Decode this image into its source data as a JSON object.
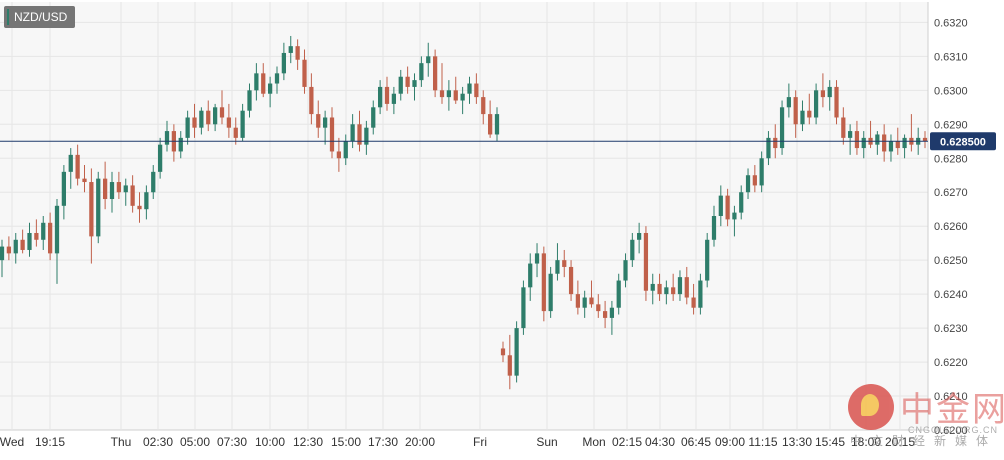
{
  "symbol": "NZD/USD",
  "current_price_label": "0.628500",
  "colors": {
    "up": "#2e7d6a",
    "down": "#c0604a",
    "price_line": "#1f3a6b",
    "grid": "#e6e6e6",
    "background": "#f7f7f7"
  },
  "watermark": {
    "brand": "中金网",
    "url": "CNGOLD.ORG.CN",
    "tagline": "中文财经新媒体"
  },
  "chart_data": {
    "type": "candlestick",
    "title": "NZD/USD",
    "ylim": [
      0.62,
      0.6326
    ],
    "y_ticks": [
      "0.6320",
      "0.6310",
      "0.6300",
      "0.6290",
      "0.6280",
      "0.6270",
      "0.6260",
      "0.6250",
      "0.6240",
      "0.6230",
      "0.6220",
      "0.6210",
      "0.6200"
    ],
    "x_ticks": [
      "Wed",
      "19:15",
      "Thu",
      "02:30",
      "05:00",
      "07:30",
      "10:00",
      "12:30",
      "15:00",
      "17:30",
      "20:00",
      "Fri",
      "Sun",
      "Mon",
      "02:15",
      "04:30",
      "06:45",
      "09:00",
      "11:15",
      "13:30",
      "15:45",
      "18:00",
      "20:15"
    ],
    "current_price": 0.6285,
    "ohlc": [
      [
        0.625,
        0.6256,
        0.6245,
        0.6254
      ],
      [
        0.6254,
        0.6257,
        0.625,
        0.6252
      ],
      [
        0.6252,
        0.6258,
        0.6249,
        0.6256
      ],
      [
        0.6256,
        0.6259,
        0.6252,
        0.6253
      ],
      [
        0.6253,
        0.6261,
        0.6251,
        0.6258
      ],
      [
        0.6258,
        0.6262,
        0.6254,
        0.6256
      ],
      [
        0.6256,
        0.6263,
        0.6253,
        0.6261
      ],
      [
        0.6261,
        0.6264,
        0.625,
        0.6252
      ],
      [
        0.6252,
        0.6268,
        0.6243,
        0.6266
      ],
      [
        0.6266,
        0.6278,
        0.6262,
        0.6276
      ],
      [
        0.6276,
        0.6283,
        0.6271,
        0.6281
      ],
      [
        0.6281,
        0.6284,
        0.6272,
        0.6274
      ],
      [
        0.6274,
        0.6278,
        0.627,
        0.6273
      ],
      [
        0.6273,
        0.6277,
        0.6249,
        0.6257
      ],
      [
        0.6257,
        0.6276,
        0.6255,
        0.6274
      ],
      [
        0.6274,
        0.6279,
        0.6265,
        0.6268
      ],
      [
        0.6268,
        0.6276,
        0.6264,
        0.6273
      ],
      [
        0.6273,
        0.6276,
        0.6268,
        0.627
      ],
      [
        0.627,
        0.6274,
        0.6266,
        0.6272
      ],
      [
        0.6272,
        0.6275,
        0.6264,
        0.6266
      ],
      [
        0.6266,
        0.627,
        0.6261,
        0.6265
      ],
      [
        0.6265,
        0.6272,
        0.6262,
        0.627
      ],
      [
        0.627,
        0.6278,
        0.6268,
        0.6276
      ],
      [
        0.6276,
        0.6286,
        0.6274,
        0.6284
      ],
      [
        0.6284,
        0.6291,
        0.6282,
        0.6288
      ],
      [
        0.6288,
        0.629,
        0.6279,
        0.6282
      ],
      [
        0.6282,
        0.6288,
        0.628,
        0.6286
      ],
      [
        0.6286,
        0.6294,
        0.6284,
        0.6292
      ],
      [
        0.6292,
        0.6296,
        0.6286,
        0.6289
      ],
      [
        0.6289,
        0.6295,
        0.6287,
        0.6294
      ],
      [
        0.6294,
        0.6297,
        0.6288,
        0.629
      ],
      [
        0.629,
        0.6296,
        0.6288,
        0.6295
      ],
      [
        0.6295,
        0.63,
        0.629,
        0.6292
      ],
      [
        0.6292,
        0.6296,
        0.6286,
        0.6289
      ],
      [
        0.6289,
        0.6292,
        0.6284,
        0.6286
      ],
      [
        0.6286,
        0.6296,
        0.6285,
        0.6294
      ],
      [
        0.6294,
        0.6302,
        0.6292,
        0.63
      ],
      [
        0.63,
        0.6308,
        0.6297,
        0.6305
      ],
      [
        0.6305,
        0.6308,
        0.6298,
        0.6299
      ],
      [
        0.6299,
        0.6304,
        0.6295,
        0.6302
      ],
      [
        0.6302,
        0.6307,
        0.6299,
        0.6305
      ],
      [
        0.6305,
        0.6314,
        0.6303,
        0.6311
      ],
      [
        0.6311,
        0.6316,
        0.6308,
        0.6313
      ],
      [
        0.6313,
        0.6315,
        0.6306,
        0.6309
      ],
      [
        0.6309,
        0.6312,
        0.6299,
        0.6301
      ],
      [
        0.6301,
        0.6305,
        0.629,
        0.6293
      ],
      [
        0.6293,
        0.6297,
        0.6286,
        0.6289
      ],
      [
        0.6289,
        0.6294,
        0.6284,
        0.6292
      ],
      [
        0.6292,
        0.6295,
        0.628,
        0.6282
      ],
      [
        0.6282,
        0.6286,
        0.6276,
        0.628
      ],
      [
        0.628,
        0.6287,
        0.6278,
        0.6285
      ],
      [
        0.6285,
        0.6293,
        0.6283,
        0.629
      ],
      [
        0.629,
        0.6294,
        0.6282,
        0.6284
      ],
      [
        0.6284,
        0.6291,
        0.6281,
        0.6289
      ],
      [
        0.6289,
        0.6297,
        0.6287,
        0.6295
      ],
      [
        0.6295,
        0.6303,
        0.6293,
        0.6301
      ],
      [
        0.6301,
        0.6304,
        0.6294,
        0.6296
      ],
      [
        0.6296,
        0.6301,
        0.6293,
        0.6299
      ],
      [
        0.6299,
        0.6306,
        0.6297,
        0.6304
      ],
      [
        0.6304,
        0.6307,
        0.6299,
        0.6301
      ],
      [
        0.6301,
        0.6305,
        0.6297,
        0.6303
      ],
      [
        0.6303,
        0.631,
        0.6301,
        0.6308
      ],
      [
        0.6308,
        0.6314,
        0.6304,
        0.631
      ],
      [
        0.631,
        0.6312,
        0.6298,
        0.63
      ],
      [
        0.63,
        0.6308,
        0.6296,
        0.6298
      ],
      [
        0.6298,
        0.6303,
        0.6294,
        0.63
      ],
      [
        0.63,
        0.6304,
        0.6296,
        0.6297
      ],
      [
        0.6297,
        0.6301,
        0.6293,
        0.6299
      ],
      [
        0.6299,
        0.6304,
        0.6296,
        0.6302
      ],
      [
        0.6302,
        0.6305,
        0.6296,
        0.6298
      ],
      [
        0.6298,
        0.63,
        0.629,
        0.6293
      ],
      [
        0.6293,
        0.6297,
        0.6286,
        0.6287
      ],
      [
        0.6287,
        0.6295,
        0.6285,
        0.6293
      ]
    ],
    "ohlc_session2": [
      [
        0.6224,
        0.6226,
        0.622,
        0.6222
      ],
      [
        0.6222,
        0.6228,
        0.6212,
        0.6216
      ],
      [
        0.6216,
        0.6232,
        0.6214,
        0.623
      ],
      [
        0.623,
        0.6244,
        0.6228,
        0.6242
      ],
      [
        0.6242,
        0.6252,
        0.6238,
        0.6249
      ],
      [
        0.6249,
        0.6255,
        0.6245,
        0.6252
      ],
      [
        0.6252,
        0.6254,
        0.6232,
        0.6235
      ],
      [
        0.6235,
        0.6248,
        0.6233,
        0.6246
      ],
      [
        0.6246,
        0.6255,
        0.6244,
        0.625
      ],
      [
        0.625,
        0.6253,
        0.6245,
        0.6248
      ],
      [
        0.6248,
        0.625,
        0.6238,
        0.624
      ],
      [
        0.624,
        0.6244,
        0.6234,
        0.6236
      ],
      [
        0.6236,
        0.6241,
        0.6233,
        0.6239
      ],
      [
        0.6239,
        0.6244,
        0.6236,
        0.6237
      ],
      [
        0.6237,
        0.624,
        0.6233,
        0.6235
      ],
      [
        0.6235,
        0.6238,
        0.623,
        0.6233
      ],
      [
        0.6233,
        0.6238,
        0.6228,
        0.6236
      ],
      [
        0.6236,
        0.6246,
        0.6234,
        0.6244
      ],
      [
        0.6244,
        0.6252,
        0.6242,
        0.625
      ],
      [
        0.625,
        0.6258,
        0.6248,
        0.6256
      ],
      [
        0.6256,
        0.6261,
        0.6252,
        0.6258
      ],
      [
        0.6258,
        0.626,
        0.6238,
        0.6241
      ],
      [
        0.6241,
        0.6246,
        0.6237,
        0.6243
      ],
      [
        0.6243,
        0.6246,
        0.6238,
        0.624
      ],
      [
        0.624,
        0.6244,
        0.6237,
        0.6242
      ],
      [
        0.6242,
        0.6246,
        0.6238,
        0.624
      ],
      [
        0.624,
        0.6247,
        0.6238,
        0.6245
      ],
      [
        0.6245,
        0.6248,
        0.6237,
        0.6239
      ],
      [
        0.6239,
        0.6243,
        0.6234,
        0.6236
      ],
      [
        0.6236,
        0.6246,
        0.6234,
        0.6244
      ],
      [
        0.6244,
        0.6258,
        0.6242,
        0.6256
      ],
      [
        0.6256,
        0.6266,
        0.6254,
        0.6263
      ],
      [
        0.6263,
        0.6272,
        0.626,
        0.6269
      ],
      [
        0.6269,
        0.6271,
        0.626,
        0.6262
      ],
      [
        0.6262,
        0.6266,
        0.6257,
        0.6264
      ],
      [
        0.6264,
        0.6272,
        0.6262,
        0.627
      ],
      [
        0.627,
        0.6277,
        0.6268,
        0.6275
      ],
      [
        0.6275,
        0.6278,
        0.627,
        0.6272
      ],
      [
        0.6272,
        0.6282,
        0.627,
        0.628
      ],
      [
        0.628,
        0.6288,
        0.6278,
        0.6286
      ],
      [
        0.6286,
        0.629,
        0.628,
        0.6283
      ],
      [
        0.6283,
        0.6297,
        0.6281,
        0.6295
      ],
      [
        0.6295,
        0.6302,
        0.6292,
        0.6298
      ],
      [
        0.6298,
        0.63,
        0.6286,
        0.629
      ],
      [
        0.629,
        0.6297,
        0.6288,
        0.6294
      ],
      [
        0.6294,
        0.6299,
        0.629,
        0.6292
      ],
      [
        0.6292,
        0.6302,
        0.629,
        0.63
      ],
      [
        0.63,
        0.6305,
        0.6295,
        0.6298
      ],
      [
        0.6298,
        0.6303,
        0.6294,
        0.6301
      ],
      [
        0.6301,
        0.6303,
        0.629,
        0.6292
      ],
      [
        0.6292,
        0.6295,
        0.6284,
        0.6286
      ],
      [
        0.6286,
        0.629,
        0.6281,
        0.6288
      ],
      [
        0.6288,
        0.6291,
        0.6281,
        0.6283
      ],
      [
        0.6283,
        0.6288,
        0.628,
        0.6286
      ],
      [
        0.6286,
        0.6291,
        0.6283,
        0.6284
      ],
      [
        0.6284,
        0.6288,
        0.6281,
        0.6287
      ],
      [
        0.6287,
        0.629,
        0.6279,
        0.6282
      ],
      [
        0.6282,
        0.6287,
        0.6279,
        0.6285
      ],
      [
        0.6285,
        0.6289,
        0.6281,
        0.6283
      ],
      [
        0.6283,
        0.6287,
        0.628,
        0.6286
      ],
      [
        0.6286,
        0.6293,
        0.6282,
        0.6284
      ],
      [
        0.6284,
        0.6289,
        0.6281,
        0.6286
      ],
      [
        0.6286,
        0.6288,
        0.6283,
        0.6285
      ]
    ]
  }
}
